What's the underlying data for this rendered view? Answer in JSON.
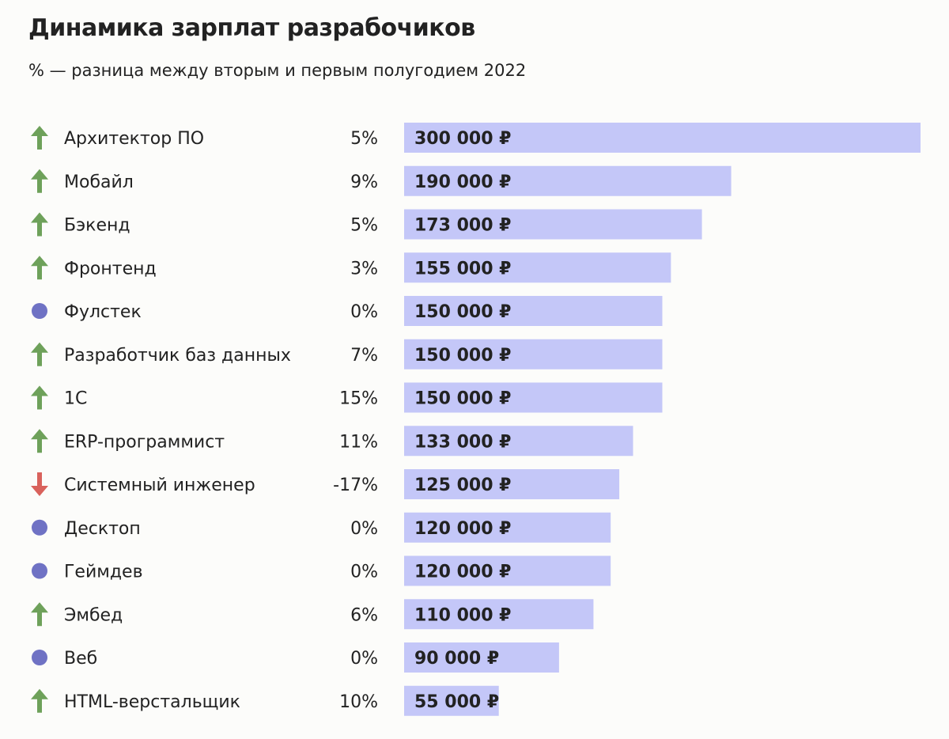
{
  "chart_data": {
    "type": "bar",
    "orientation": "horizontal",
    "title": "Динамика зарплат разрабочиков",
    "subtitle": "% — разница между вторым и первым полугодием 2022",
    "currency": "₽",
    "xlim": [
      0,
      300000
    ],
    "colors": {
      "bar": "#c4c7f8",
      "up": "#6ea15a",
      "down": "#d9625c",
      "flat": "#6f72c4"
    },
    "categories": [
      "Архитектор ПО",
      "Мобайл",
      "Бэкенд",
      "Фронтенд",
      "Фулстек",
      "Разработчик баз данных",
      "1С",
      "ERP-программист",
      "Системный инженер",
      "Десктоп",
      "Геймдев",
      "Эмбед",
      "Веб",
      "HTML-верстальщик"
    ],
    "values": [
      300000,
      190000,
      173000,
      155000,
      150000,
      150000,
      150000,
      133000,
      125000,
      120000,
      120000,
      110000,
      90000,
      55000
    ],
    "value_labels": [
      "300 000 ₽",
      "190 000 ₽",
      "173 000 ₽",
      "155 000 ₽",
      "150 000 ₽",
      "150 000 ₽",
      "150 000 ₽",
      "133 000 ₽",
      "125 000 ₽",
      "120 000 ₽",
      "120 000 ₽",
      "110 000 ₽",
      "90 000 ₽",
      "55 000 ₽"
    ],
    "changes": [
      "5%",
      "9%",
      "5%",
      "3%",
      "0%",
      "7%",
      "15%",
      "11%",
      "-17%",
      "0%",
      "0%",
      "6%",
      "0%",
      "10%"
    ],
    "trends": [
      "up",
      "up",
      "up",
      "up",
      "flat",
      "up",
      "up",
      "up",
      "down",
      "flat",
      "flat",
      "up",
      "flat",
      "up"
    ],
    "trend_icons": {
      "up": "arrow-up-icon",
      "down": "arrow-down-icon",
      "flat": "dot-icon"
    }
  }
}
